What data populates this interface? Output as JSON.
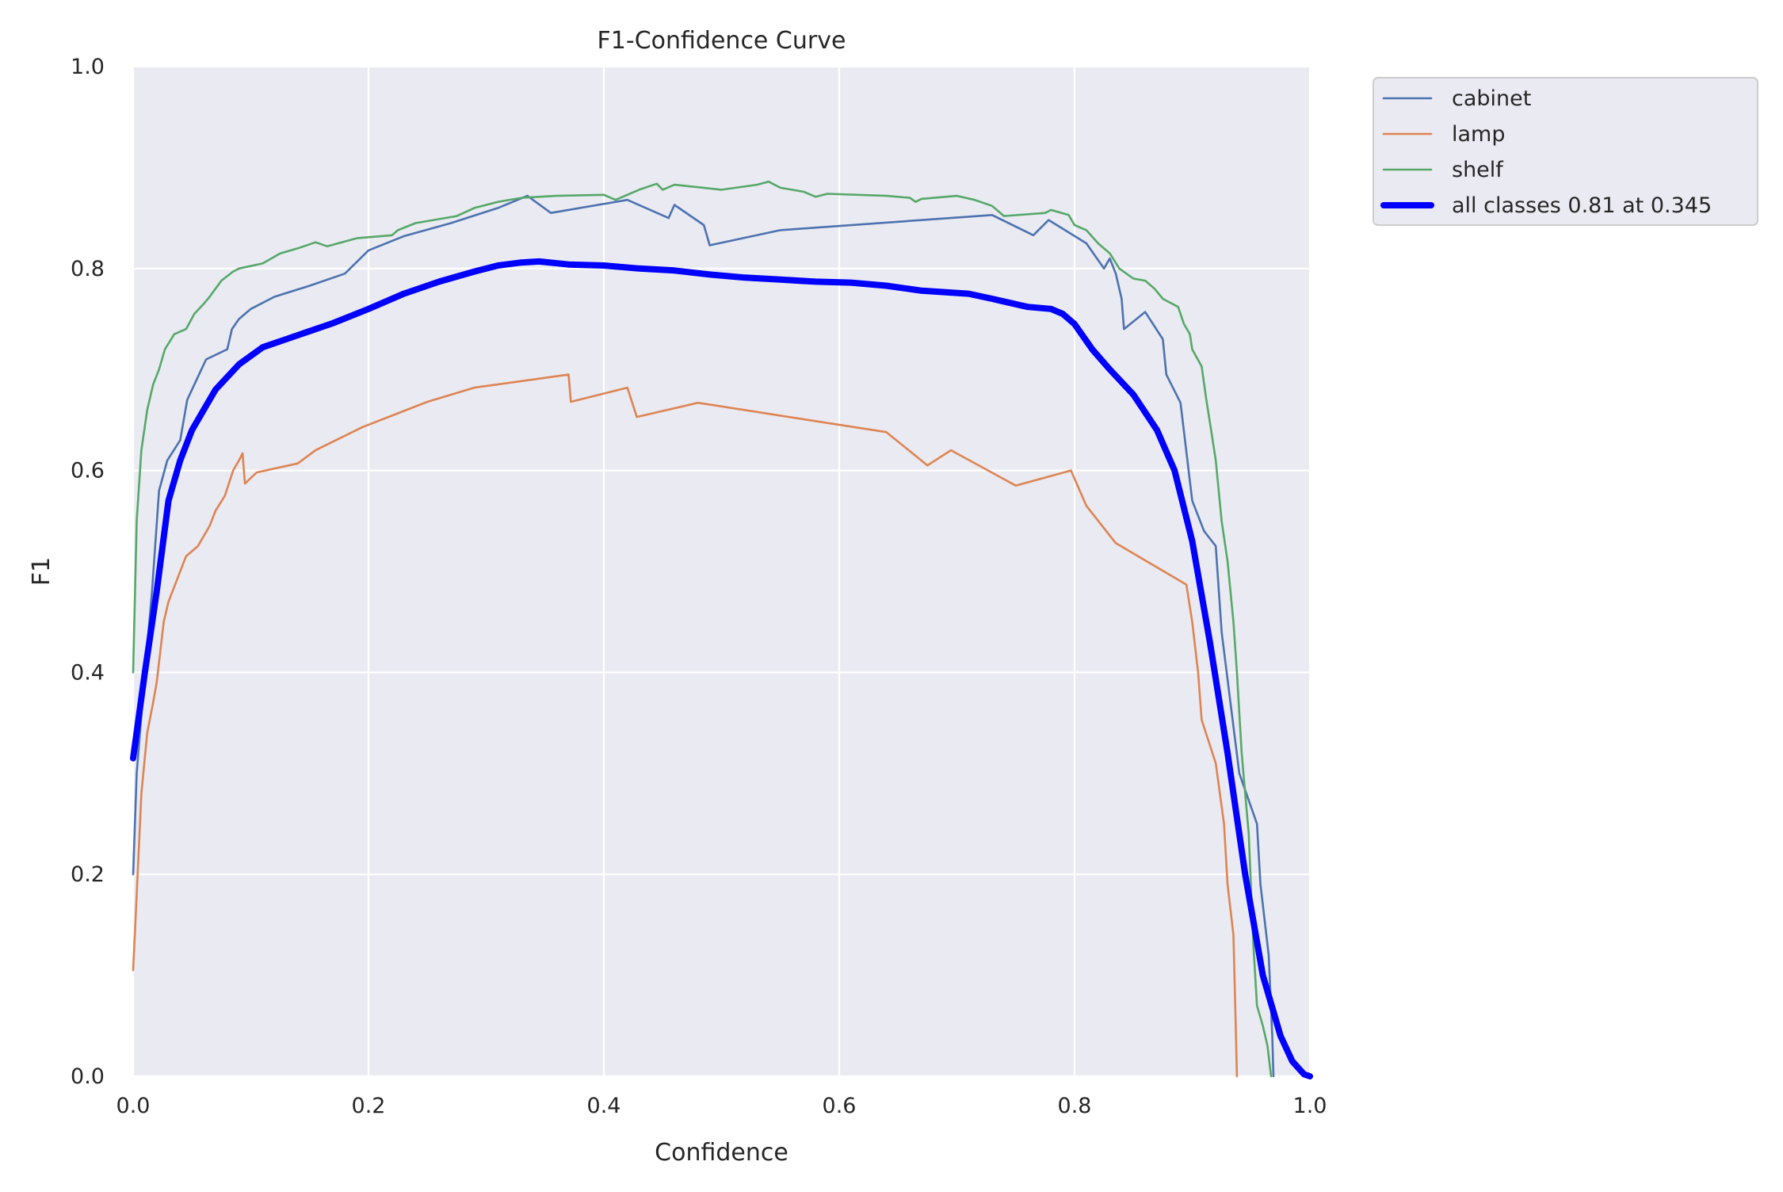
{
  "chart_data": {
    "type": "line",
    "title": "F1-Confidence Curve",
    "xlabel": "Confidence",
    "ylabel": "F1",
    "xlim": [
      0,
      1
    ],
    "ylim": [
      0,
      1
    ],
    "grid": true,
    "legend_position": "outside-right-top",
    "x_ticks": [
      "0.0",
      "0.2",
      "0.4",
      "0.6",
      "0.8",
      "1.0"
    ],
    "y_ticks": [
      "0.0",
      "0.2",
      "0.4",
      "0.6",
      "0.8",
      "1.0"
    ],
    "series": [
      {
        "name": "cabinet",
        "color": "#4c72b0",
        "emphasis": false,
        "points": [
          [
            0.0,
            0.2
          ],
          [
            0.003,
            0.3
          ],
          [
            0.01,
            0.4
          ],
          [
            0.016,
            0.48
          ],
          [
            0.022,
            0.58
          ],
          [
            0.029,
            0.61
          ],
          [
            0.04,
            0.63
          ],
          [
            0.046,
            0.67
          ],
          [
            0.058,
            0.7
          ],
          [
            0.062,
            0.71
          ],
          [
            0.08,
            0.72
          ],
          [
            0.084,
            0.74
          ],
          [
            0.09,
            0.75
          ],
          [
            0.1,
            0.76
          ],
          [
            0.12,
            0.772
          ],
          [
            0.15,
            0.783
          ],
          [
            0.18,
            0.795
          ],
          [
            0.2,
            0.818
          ],
          [
            0.23,
            0.832
          ],
          [
            0.27,
            0.845
          ],
          [
            0.31,
            0.86
          ],
          [
            0.335,
            0.872
          ],
          [
            0.355,
            0.855
          ],
          [
            0.42,
            0.868
          ],
          [
            0.455,
            0.85
          ],
          [
            0.46,
            0.863
          ],
          [
            0.485,
            0.843
          ],
          [
            0.49,
            0.823
          ],
          [
            0.55,
            0.838
          ],
          [
            0.73,
            0.853
          ],
          [
            0.765,
            0.833
          ],
          [
            0.778,
            0.848
          ],
          [
            0.81,
            0.825
          ],
          [
            0.825,
            0.8
          ],
          [
            0.83,
            0.81
          ],
          [
            0.835,
            0.795
          ],
          [
            0.84,
            0.77
          ],
          [
            0.842,
            0.74
          ],
          [
            0.86,
            0.757
          ],
          [
            0.875,
            0.73
          ],
          [
            0.878,
            0.695
          ],
          [
            0.89,
            0.667
          ],
          [
            0.9,
            0.57
          ],
          [
            0.91,
            0.54
          ],
          [
            0.92,
            0.525
          ],
          [
            0.925,
            0.44
          ],
          [
            0.94,
            0.3
          ],
          [
            0.955,
            0.25
          ],
          [
            0.958,
            0.19
          ],
          [
            0.965,
            0.12
          ],
          [
            0.968,
            0.04
          ],
          [
            0.969,
            0.0
          ]
        ]
      },
      {
        "name": "lamp",
        "color": "#dd8452",
        "emphasis": false,
        "points": [
          [
            0.0,
            0.105
          ],
          [
            0.003,
            0.18
          ],
          [
            0.007,
            0.28
          ],
          [
            0.012,
            0.34
          ],
          [
            0.017,
            0.37
          ],
          [
            0.02,
            0.39
          ],
          [
            0.023,
            0.42
          ],
          [
            0.026,
            0.45
          ],
          [
            0.03,
            0.47
          ],
          [
            0.035,
            0.485
          ],
          [
            0.04,
            0.5
          ],
          [
            0.045,
            0.515
          ],
          [
            0.055,
            0.525
          ],
          [
            0.06,
            0.535
          ],
          [
            0.065,
            0.545
          ],
          [
            0.07,
            0.56
          ],
          [
            0.078,
            0.575
          ],
          [
            0.085,
            0.6
          ],
          [
            0.09,
            0.61
          ],
          [
            0.093,
            0.617
          ],
          [
            0.095,
            0.587
          ],
          [
            0.105,
            0.598
          ],
          [
            0.14,
            0.607
          ],
          [
            0.155,
            0.62
          ],
          [
            0.195,
            0.643
          ],
          [
            0.25,
            0.668
          ],
          [
            0.29,
            0.682
          ],
          [
            0.37,
            0.695
          ],
          [
            0.372,
            0.668
          ],
          [
            0.42,
            0.682
          ],
          [
            0.428,
            0.653
          ],
          [
            0.48,
            0.667
          ],
          [
            0.64,
            0.638
          ],
          [
            0.675,
            0.605
          ],
          [
            0.695,
            0.62
          ],
          [
            0.75,
            0.585
          ],
          [
            0.797,
            0.6
          ],
          [
            0.81,
            0.565
          ],
          [
            0.835,
            0.528
          ],
          [
            0.895,
            0.487
          ],
          [
            0.9,
            0.45
          ],
          [
            0.905,
            0.4
          ],
          [
            0.908,
            0.353
          ],
          [
            0.92,
            0.31
          ],
          [
            0.927,
            0.25
          ],
          [
            0.93,
            0.19
          ],
          [
            0.935,
            0.14
          ],
          [
            0.937,
            0.05
          ],
          [
            0.938,
            0.0
          ]
        ]
      },
      {
        "name": "shelf",
        "color": "#55a868",
        "emphasis": false,
        "points": [
          [
            0.0,
            0.4
          ],
          [
            0.003,
            0.55
          ],
          [
            0.007,
            0.62
          ],
          [
            0.012,
            0.66
          ],
          [
            0.017,
            0.685
          ],
          [
            0.022,
            0.7
          ],
          [
            0.027,
            0.72
          ],
          [
            0.035,
            0.735
          ],
          [
            0.045,
            0.74
          ],
          [
            0.052,
            0.755
          ],
          [
            0.06,
            0.765
          ],
          [
            0.065,
            0.772
          ],
          [
            0.07,
            0.78
          ],
          [
            0.075,
            0.788
          ],
          [
            0.085,
            0.797
          ],
          [
            0.09,
            0.8
          ],
          [
            0.11,
            0.805
          ],
          [
            0.125,
            0.815
          ],
          [
            0.14,
            0.82
          ],
          [
            0.155,
            0.826
          ],
          [
            0.165,
            0.822
          ],
          [
            0.19,
            0.83
          ],
          [
            0.22,
            0.833
          ],
          [
            0.225,
            0.838
          ],
          [
            0.24,
            0.845
          ],
          [
            0.275,
            0.852
          ],
          [
            0.29,
            0.86
          ],
          [
            0.31,
            0.866
          ],
          [
            0.33,
            0.87
          ],
          [
            0.36,
            0.872
          ],
          [
            0.4,
            0.873
          ],
          [
            0.41,
            0.868
          ],
          [
            0.43,
            0.878
          ],
          [
            0.445,
            0.884
          ],
          [
            0.45,
            0.878
          ],
          [
            0.46,
            0.883
          ],
          [
            0.5,
            0.878
          ],
          [
            0.53,
            0.883
          ],
          [
            0.54,
            0.886
          ],
          [
            0.55,
            0.88
          ],
          [
            0.57,
            0.876
          ],
          [
            0.58,
            0.871
          ],
          [
            0.59,
            0.874
          ],
          [
            0.64,
            0.872
          ],
          [
            0.66,
            0.87
          ],
          [
            0.665,
            0.866
          ],
          [
            0.67,
            0.869
          ],
          [
            0.7,
            0.872
          ],
          [
            0.715,
            0.868
          ],
          [
            0.73,
            0.862
          ],
          [
            0.74,
            0.852
          ],
          [
            0.775,
            0.855
          ],
          [
            0.78,
            0.858
          ],
          [
            0.795,
            0.853
          ],
          [
            0.8,
            0.843
          ],
          [
            0.81,
            0.838
          ],
          [
            0.82,
            0.825
          ],
          [
            0.83,
            0.815
          ],
          [
            0.838,
            0.8
          ],
          [
            0.85,
            0.79
          ],
          [
            0.86,
            0.788
          ],
          [
            0.868,
            0.78
          ],
          [
            0.875,
            0.77
          ],
          [
            0.888,
            0.762
          ],
          [
            0.893,
            0.745
          ],
          [
            0.898,
            0.735
          ],
          [
            0.9,
            0.72
          ],
          [
            0.908,
            0.703
          ],
          [
            0.912,
            0.67
          ],
          [
            0.916,
            0.64
          ],
          [
            0.92,
            0.61
          ],
          [
            0.925,
            0.55
          ],
          [
            0.93,
            0.51
          ],
          [
            0.935,
            0.45
          ],
          [
            0.938,
            0.4
          ],
          [
            0.942,
            0.32
          ],
          [
            0.948,
            0.24
          ],
          [
            0.952,
            0.13
          ],
          [
            0.955,
            0.07
          ],
          [
            0.96,
            0.05
          ],
          [
            0.964,
            0.03
          ],
          [
            0.966,
            0.01
          ],
          [
            0.967,
            0.0
          ]
        ]
      },
      {
        "name": "all classes 0.81 at 0.345",
        "color": "#0000ff",
        "emphasis": true,
        "points": [
          [
            0.0,
            0.315
          ],
          [
            0.01,
            0.4
          ],
          [
            0.02,
            0.48
          ],
          [
            0.03,
            0.57
          ],
          [
            0.04,
            0.61
          ],
          [
            0.05,
            0.64
          ],
          [
            0.07,
            0.68
          ],
          [
            0.09,
            0.705
          ],
          [
            0.11,
            0.722
          ],
          [
            0.13,
            0.73
          ],
          [
            0.15,
            0.738
          ],
          [
            0.17,
            0.746
          ],
          [
            0.2,
            0.76
          ],
          [
            0.23,
            0.775
          ],
          [
            0.26,
            0.787
          ],
          [
            0.29,
            0.797
          ],
          [
            0.31,
            0.803
          ],
          [
            0.33,
            0.806
          ],
          [
            0.345,
            0.807
          ],
          [
            0.37,
            0.804
          ],
          [
            0.4,
            0.803
          ],
          [
            0.43,
            0.8
          ],
          [
            0.46,
            0.798
          ],
          [
            0.49,
            0.794
          ],
          [
            0.52,
            0.791
          ],
          [
            0.55,
            0.789
          ],
          [
            0.58,
            0.787
          ],
          [
            0.61,
            0.786
          ],
          [
            0.64,
            0.783
          ],
          [
            0.67,
            0.778
          ],
          [
            0.71,
            0.775
          ],
          [
            0.73,
            0.77
          ],
          [
            0.76,
            0.762
          ],
          [
            0.78,
            0.76
          ],
          [
            0.79,
            0.755
          ],
          [
            0.8,
            0.745
          ],
          [
            0.815,
            0.72
          ],
          [
            0.83,
            0.7
          ],
          [
            0.85,
            0.675
          ],
          [
            0.87,
            0.64
          ],
          [
            0.885,
            0.6
          ],
          [
            0.9,
            0.53
          ],
          [
            0.915,
            0.43
          ],
          [
            0.93,
            0.32
          ],
          [
            0.945,
            0.2
          ],
          [
            0.96,
            0.1
          ],
          [
            0.975,
            0.04
          ],
          [
            0.985,
            0.015
          ],
          [
            0.995,
            0.002
          ],
          [
            1.0,
            0.0
          ]
        ]
      }
    ]
  }
}
